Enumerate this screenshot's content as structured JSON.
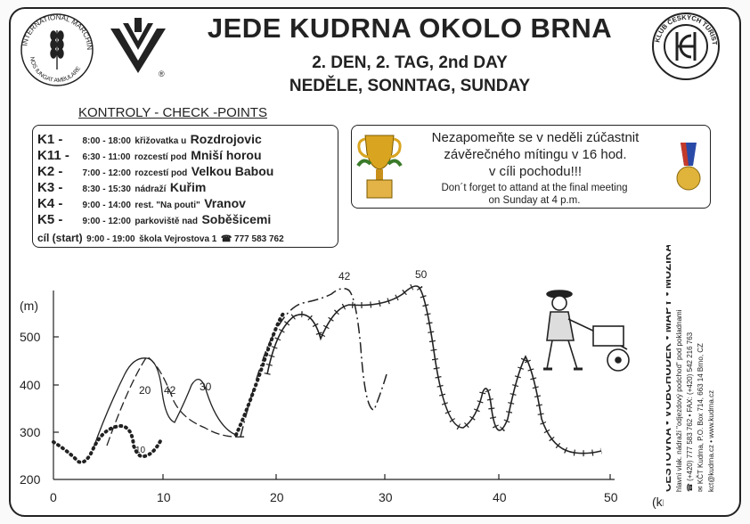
{
  "header": {
    "title": "JEDE KUDRNA OKOLO BRNA",
    "subtitle_day": "2. DEN, 2. TAG, 2nd DAY",
    "subtitle_weekday": "NEDĚLE, SONNTAG, SUNDAY"
  },
  "logos": {
    "imv_ring_text": "INTERNATIONAL MARCHING LEAGUE",
    "imv_motto": "IVV",
    "imv_bottom": "NOS IUNGAT AMBULARE",
    "ivv_registered": "®",
    "kct_ring_text": "KLUB ČESKÝCH TURISTŮ",
    "kct_letters": "KČT"
  },
  "checkpoints": {
    "heading": "KONTROLY - CHECK -POINTS",
    "items": [
      {
        "code": "K1 -",
        "time": "8:00 - 18:00",
        "desc": "křižovatka u",
        "place": "Rozdrojovic"
      },
      {
        "code": "K11 -",
        "time": "6:30 - 11:00",
        "desc": "rozcestí pod",
        "place": "Mniší horou"
      },
      {
        "code": "K2 -",
        "time": "7:00 - 12:00",
        "desc": "rozcestí pod",
        "place": "Velkou Babou"
      },
      {
        "code": "K3 -",
        "time": "8:30 - 15:30",
        "desc": "nádraží",
        "place": "Kuřim"
      },
      {
        "code": "K4 -",
        "time": "9:00 - 14:00",
        "desc": "rest. \"Na pouti\"",
        "place": "Vranov"
      },
      {
        "code": "K5 -",
        "time": "9:00 - 12:00",
        "desc": "parkoviště nad",
        "place": "Soběšicemi"
      }
    ],
    "finish": {
      "code": "cíl (start)",
      "time": "9:00 - 19:00",
      "desc": "škola Vejrostova 1",
      "phone": "☎ 777 583 762"
    }
  },
  "notice": {
    "cz_line1": "Nezapomeňte se v neděli zúčastnit",
    "cz_line2": "závěrečného mítingu v 16 hod.",
    "cz_line3": "v cíli pochodu!!!",
    "en_line1": "Don´t forget to attand at the final meeting",
    "en_line2": "on Sunday at 4 p.m."
  },
  "profile": {
    "y_unit": "(m)",
    "x_unit": "(km)",
    "y_ticks": [
      "500",
      "400",
      "300",
      "200"
    ],
    "x_ticks": [
      "0",
      "10",
      "20",
      "30",
      "40",
      "50"
    ],
    "route_labels": [
      "10",
      "20",
      "42",
      "30",
      "42",
      "50"
    ]
  },
  "shop": {
    "line1": "CESTOVKA • VOBCHŮDEK • MAPY • MUZIKA",
    "line2": "hlavní vlak. nádraží \"odjezdový podchod\" pod pokladnami",
    "line3": "☎ (+420) 777 583 762 • FAX: (+420) 542 216 763",
    "line4": "✉ KČT Kudrna, P.O. Box 714, 663 14 Brno, CZ",
    "line5": "kct@kudrna.cz • www.kudrna.cz"
  }
}
